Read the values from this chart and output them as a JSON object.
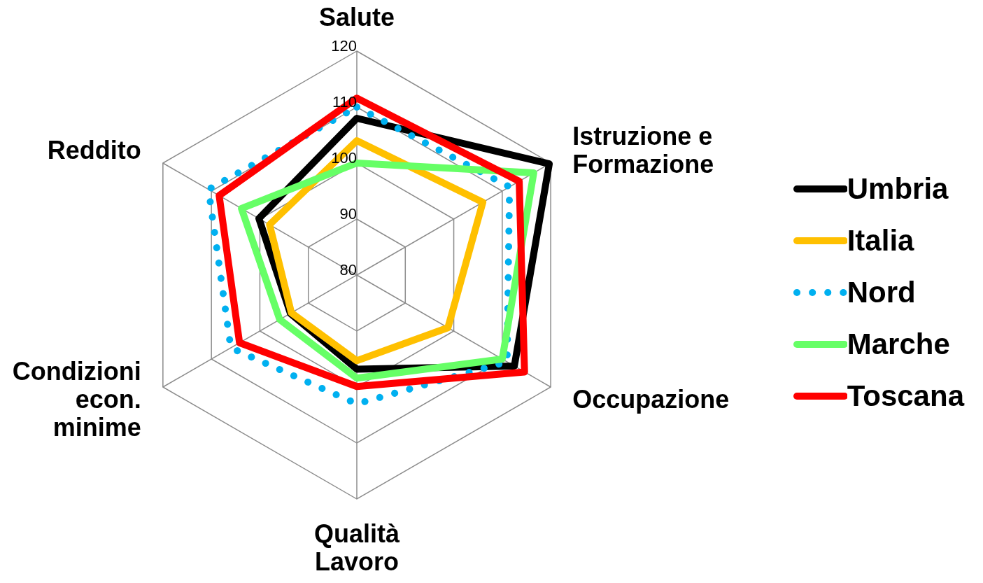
{
  "chart_data": {
    "type": "radar",
    "categories": [
      "Salute",
      "Istruzione e\nFormazione",
      "Occupazione",
      "Qualità\nLavoro",
      "Condizioni\necon.\nminime",
      "Reddito"
    ],
    "ylim": [
      80,
      120
    ],
    "yticks": [
      80,
      90,
      100,
      110,
      120
    ],
    "grid": true,
    "legend": "right",
    "series": [
      {
        "name": "Umbria",
        "color": "#000000",
        "values": [
          108,
          119.7,
          112.5,
          96.8,
          93.7,
          100.2
        ]
      },
      {
        "name": "Italia",
        "color": "#ffc000",
        "values": [
          104,
          106,
          98.8,
          95.3,
          93.5,
          98
        ]
      },
      {
        "name": "Nord",
        "color": "#00b0f0",
        "line_style": "dotted",
        "values": [
          110,
          111.5,
          111,
          103,
          106,
          110.6
        ]
      },
      {
        "name": "Marche",
        "color": "#66ff66",
        "values": [
          100,
          116.5,
          110,
          98.4,
          95.9,
          103.8
        ]
      },
      {
        "name": "Toscana",
        "color": "#ff0000",
        "values": [
          111.6,
          113.5,
          114.6,
          99.9,
          104.2,
          108.4
        ]
      }
    ]
  }
}
